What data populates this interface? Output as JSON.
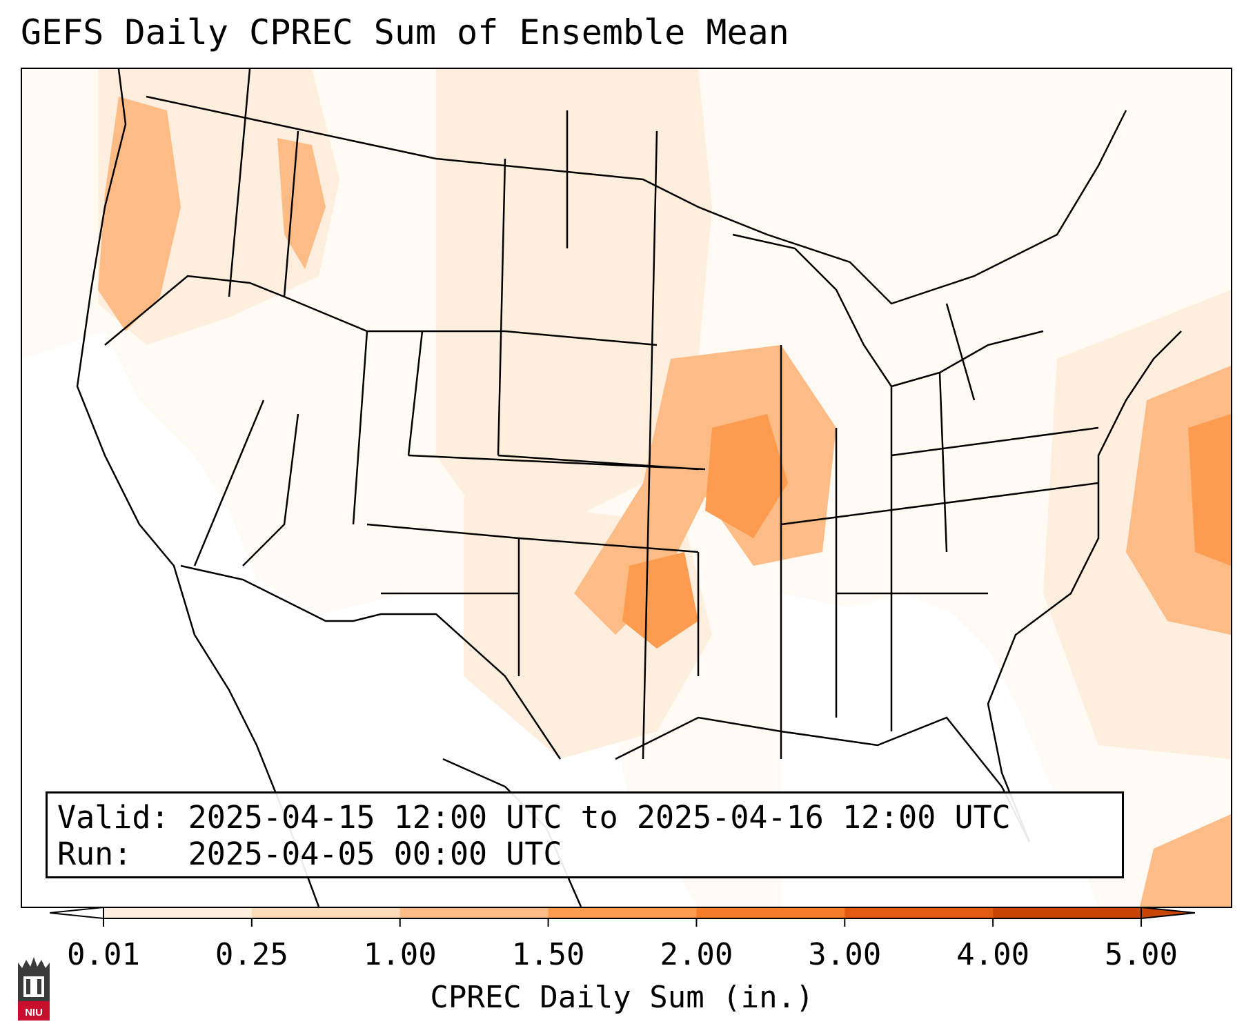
{
  "title": "GEFS Daily CPREC Sum of Ensemble Mean",
  "info_box": {
    "valid_label": "Valid:",
    "valid_value": "2025-04-15 12:00 UTC to 2025-04-16 12:00 UTC",
    "run_label": "Run:",
    "run_value": "2025-04-05 00:00 UTC"
  },
  "colorbar": {
    "label": "CPREC Daily Sum (in.)",
    "ticks": [
      "0.01",
      "0.25",
      "1.00",
      "1.50",
      "2.00",
      "3.00",
      "4.00",
      "5.00"
    ],
    "colors": [
      "#fdeedd",
      "#fddbb8",
      "#fdbc86",
      "#fd9c50",
      "#f57d2a",
      "#e35b10",
      "#c84505"
    ],
    "extend": "both"
  },
  "logo": {
    "text": "NIU",
    "colors": {
      "tower": "#3a3a3a",
      "banner": "#c8102e"
    }
  },
  "colors": {
    "land_light": "#fffaf4",
    "no_precip": "#ffffff",
    "heavy_precip": "#f08a3a",
    "boundaries": "#000000"
  }
}
